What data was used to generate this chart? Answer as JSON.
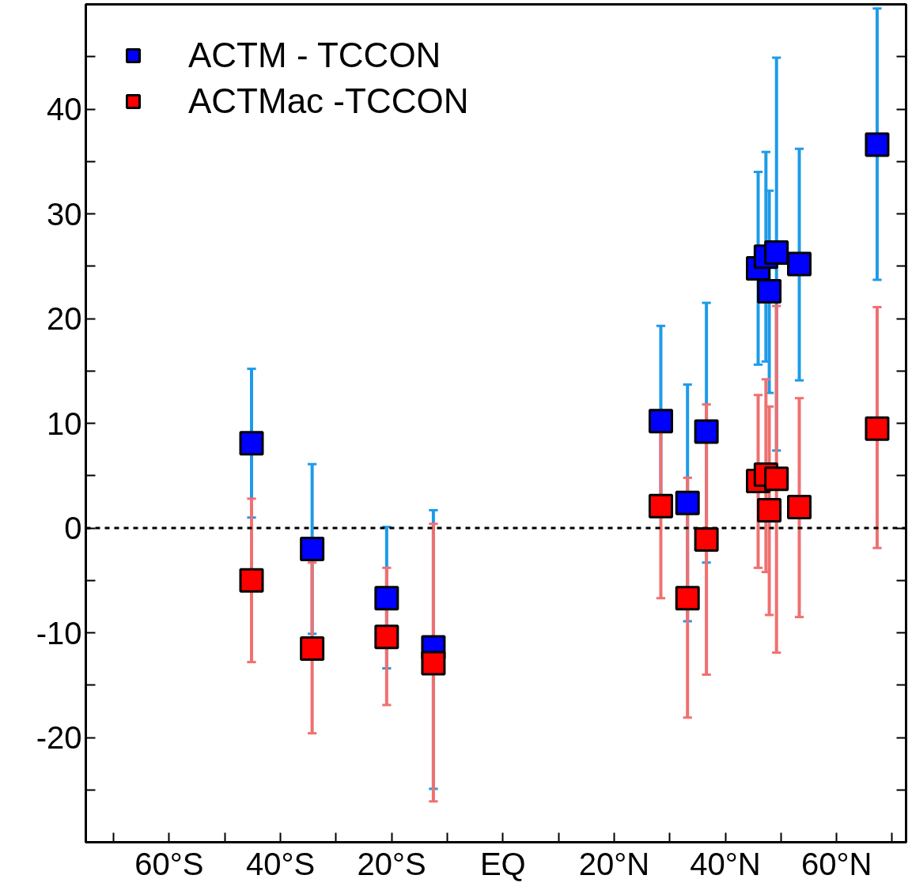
{
  "chart_data": {
    "type": "scatter",
    "x": [
      -45.2,
      -34.3,
      -20.9,
      -12.5,
      28.4,
      33.2,
      36.6,
      45.9,
      47.3,
      47.9,
      49.2,
      53.3,
      67.3
    ],
    "series": [
      {
        "name": "ACTM - TCCON",
        "color": "#0000ff",
        "values": [
          8.1,
          -2.0,
          -6.7,
          -11.4,
          10.2,
          2.4,
          9.2,
          24.8,
          25.9,
          22.6,
          26.3,
          25.2,
          36.6
        ],
        "errors": [
          [
            1.0,
            15.2
          ],
          [
            -10.1,
            6.1
          ],
          [
            -13.4,
            0.1
          ],
          [
            -24.9,
            1.7
          ],
          [
            1.1,
            19.3
          ],
          [
            -8.9,
            13.7
          ],
          [
            -3.3,
            21.5
          ],
          [
            15.6,
            34.0
          ],
          [
            15.9,
            35.9
          ],
          [
            12.9,
            32.2
          ],
          [
            7.4,
            44.9
          ],
          [
            14.1,
            36.2
          ],
          [
            23.7,
            49.6
          ]
        ]
      },
      {
        "name": "ACTMac -TCCON",
        "color": "#ff0000",
        "values": [
          -5.0,
          -11.5,
          -10.4,
          -12.9,
          2.1,
          -6.7,
          -1.1,
          4.5,
          5.1,
          1.7,
          4.7,
          2.0,
          9.5
        ],
        "errors": [
          [
            -12.8,
            2.8
          ],
          [
            -19.6,
            -3.3
          ],
          [
            -16.9,
            -3.8
          ],
          [
            -26.1,
            0.4
          ],
          [
            -6.7,
            10.9
          ],
          [
            -18.1,
            4.8
          ],
          [
            -14.0,
            11.8
          ],
          [
            -3.8,
            12.7
          ],
          [
            -4.2,
            14.2
          ],
          [
            -8.3,
            11.6
          ],
          [
            -11.9,
            21.2
          ],
          [
            -8.5,
            12.4
          ],
          [
            -1.9,
            21.1
          ]
        ]
      }
    ],
    "xlim": [
      -75,
      72.5
    ],
    "ylim": [
      -30,
      50
    ],
    "xticks": [
      {
        "value": -70,
        "label": null
      },
      {
        "value": -60,
        "label": "60°S"
      },
      {
        "value": -50,
        "label": null
      },
      {
        "value": -40,
        "label": "40°S"
      },
      {
        "value": -30,
        "label": null
      },
      {
        "value": -20,
        "label": "20°S"
      },
      {
        "value": -10,
        "label": null
      },
      {
        "value": 0,
        "label": "EQ"
      },
      {
        "value": 10,
        "label": null
      },
      {
        "value": 20,
        "label": "20°N"
      },
      {
        "value": 30,
        "label": null
      },
      {
        "value": 40,
        "label": "40°N"
      },
      {
        "value": 50,
        "label": null
      },
      {
        "value": 60,
        "label": "60°N"
      },
      {
        "value": 70,
        "label": null
      }
    ],
    "yticks": [
      {
        "value": -25,
        "label": null
      },
      -20,
      {
        "value": -15,
        "label": null
      },
      -10,
      {
        "value": -5,
        "label": null
      },
      0,
      {
        "value": 5,
        "label": null
      },
      10,
      {
        "value": 15,
        "label": null
      },
      20,
      {
        "value": 25,
        "label": null
      },
      30,
      {
        "value": 35,
        "label": null
      },
      40,
      {
        "value": 45,
        "label": null
      }
    ],
    "ref_lines": [
      {
        "axis": "y",
        "value": 0,
        "label": null,
        "color": "#000000",
        "line_style": "dashed"
      }
    ],
    "marker": "square",
    "legend": "top left",
    "grid": false
  }
}
